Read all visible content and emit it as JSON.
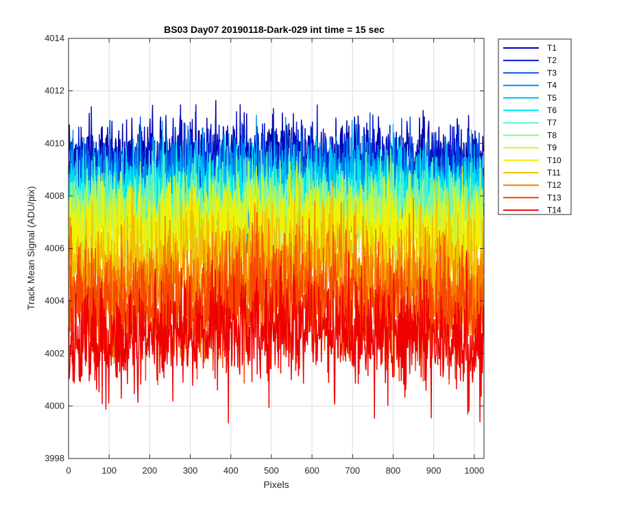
{
  "chart_data": {
    "type": "line",
    "title": "BS03 Day07 20190118-Dark-029 int time = 15 sec",
    "xlabel": "Pixels",
    "ylabel": "Track Mean Signal (ADU/pix)",
    "xlim": [
      0,
      1024
    ],
    "ylim": [
      3998,
      4014
    ],
    "xticks": [
      0,
      100,
      200,
      300,
      400,
      500,
      600,
      700,
      800,
      900,
      1000
    ],
    "yticks": [
      3998,
      4000,
      4002,
      4004,
      4006,
      4008,
      4010,
      4012,
      4014
    ],
    "grid": true,
    "legend_position": "outside-right",
    "n_pixels": 1024,
    "series": [
      {
        "name": "T1",
        "color": "#0000aa",
        "mean": 4009.4,
        "noise": 0.75,
        "max": 4011.7,
        "min": 4007.4
      },
      {
        "name": "T2",
        "color": "#0016d2",
        "mean": 4009.0,
        "noise": 0.8,
        "max": 4011.6,
        "min": 4006.6
      },
      {
        "name": "T3",
        "color": "#0050e6",
        "mean": 4008.6,
        "noise": 0.8,
        "max": 4011.2,
        "min": 4006.2
      },
      {
        "name": "T4",
        "color": "#0090f0",
        "mean": 4008.4,
        "noise": 0.85,
        "max": 4011.5,
        "min": 4005.8
      },
      {
        "name": "T5",
        "color": "#00bef8",
        "mean": 4008.2,
        "noise": 0.85,
        "max": 4012.1,
        "min": 4005.6
      },
      {
        "name": "T6",
        "color": "#00e8f0",
        "mean": 4007.9,
        "noise": 0.8,
        "max": 4010.8,
        "min": 4005.4
      },
      {
        "name": "T7",
        "color": "#5ef2c8",
        "mean": 4007.6,
        "noise": 0.8,
        "max": 4010.4,
        "min": 4005.2
      },
      {
        "name": "T8",
        "color": "#8cf490",
        "mean": 4007.4,
        "noise": 0.8,
        "max": 4011.0,
        "min": 4005.0
      },
      {
        "name": "T9",
        "color": "#c8f53c",
        "mean": 4007.0,
        "noise": 0.8,
        "max": 4009.8,
        "min": 4004.6
      },
      {
        "name": "T10",
        "color": "#f2f200",
        "mean": 4006.6,
        "noise": 0.85,
        "max": 4009.6,
        "min": 4004.0
      },
      {
        "name": "T11",
        "color": "#f2be00",
        "mean": 4005.4,
        "noise": 1.0,
        "max": 4008.8,
        "min": 4002.2
      },
      {
        "name": "T12",
        "color": "#f57d00",
        "mean": 4004.6,
        "noise": 1.05,
        "max": 4008.2,
        "min": 4001.6
      },
      {
        "name": "T13",
        "color": "#f64600",
        "mean": 4003.8,
        "noise": 1.05,
        "max": 4007.4,
        "min": 4000.8
      },
      {
        "name": "T14",
        "color": "#ee0000",
        "mean": 4002.7,
        "noise": 1.0,
        "max": 4006.0,
        "min": 3999.2
      }
    ]
  }
}
